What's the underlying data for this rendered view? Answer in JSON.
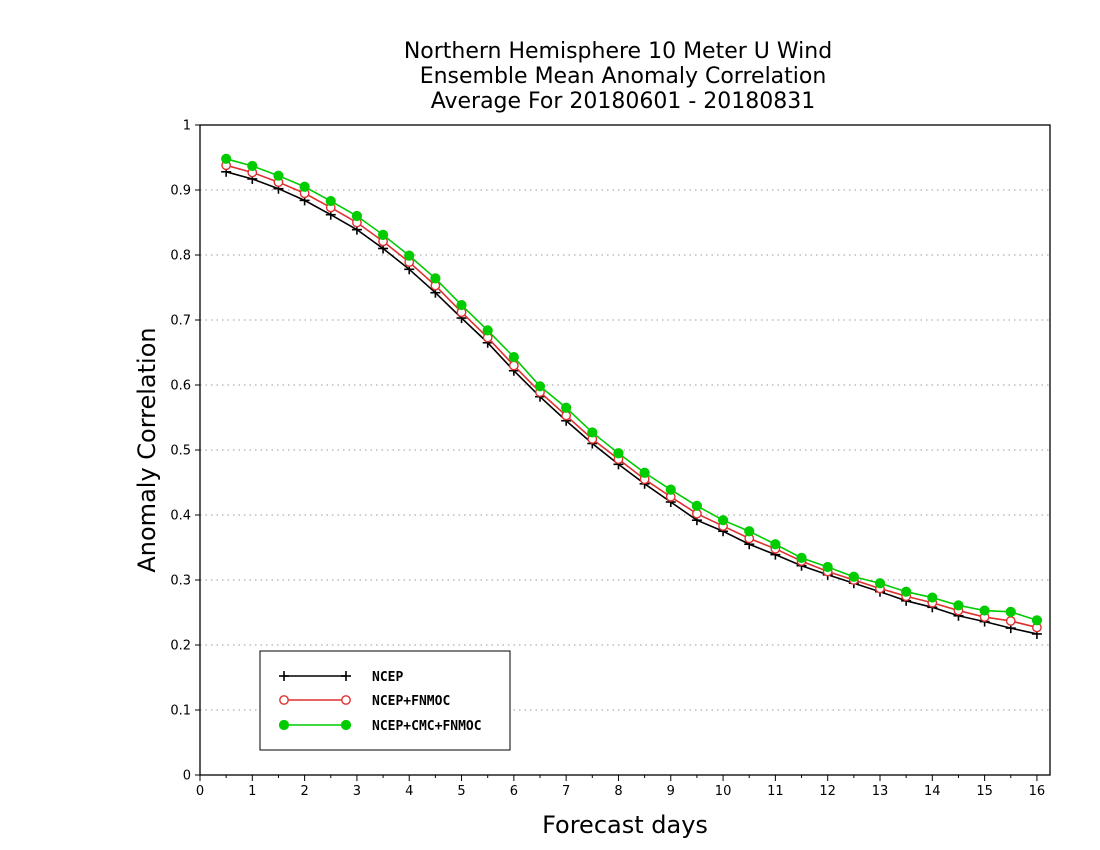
{
  "chart_data": {
    "type": "line",
    "title": [
      "Northern Hemisphere 10 Meter U Wind",
      "Ensemble Mean Anomaly Correlation",
      "Average For 20180601 - 20180831"
    ],
    "xlabel": "Forecast days",
    "ylabel": "Anomaly Correlation",
    "xlim": [
      0,
      16.25
    ],
    "ylim": [
      0,
      1
    ],
    "xticks": [
      "0",
      "1",
      "2",
      "3",
      "4",
      "5",
      "6",
      "7",
      "8",
      "9",
      "10",
      "11",
      "12",
      "13",
      "14",
      "15",
      "16"
    ],
    "yticks": [
      "0",
      "0.1",
      "0.2",
      "0.3",
      "0.4",
      "0.5",
      "0.6",
      "0.7",
      "0.8",
      "0.9",
      "1"
    ],
    "grid": "horizontal dotted",
    "legend_position": "bottom-left",
    "x": [
      0.5,
      1,
      1.5,
      2,
      2.5,
      3,
      3.5,
      4,
      4.5,
      5,
      5.5,
      6,
      6.5,
      7,
      7.5,
      8,
      8.5,
      9,
      9.5,
      10,
      10.5,
      11,
      11.5,
      12,
      12.5,
      13,
      13.5,
      14,
      14.5,
      15,
      15.5,
      16
    ],
    "series": [
      {
        "name": "NCEP",
        "color": "#000000",
        "marker": "plus",
        "values": [
          0.928,
          0.917,
          0.902,
          0.884,
          0.862,
          0.839,
          0.81,
          0.778,
          0.742,
          0.703,
          0.665,
          0.622,
          0.582,
          0.545,
          0.51,
          0.478,
          0.448,
          0.42,
          0.392,
          0.375,
          0.355,
          0.339,
          0.322,
          0.308,
          0.295,
          0.282,
          0.268,
          0.258,
          0.245,
          0.236,
          0.226,
          0.217
        ]
      },
      {
        "name": "NCEP+FNMOC",
        "color": "#e03030",
        "marker": "open-circle",
        "values": [
          0.938,
          0.927,
          0.912,
          0.895,
          0.873,
          0.85,
          0.821,
          0.789,
          0.753,
          0.712,
          0.673,
          0.63,
          0.589,
          0.553,
          0.517,
          0.486,
          0.455,
          0.428,
          0.402,
          0.383,
          0.364,
          0.348,
          0.329,
          0.313,
          0.3,
          0.287,
          0.275,
          0.265,
          0.253,
          0.243,
          0.237,
          0.227
        ]
      },
      {
        "name": "NCEP+CMC+FNMOC",
        "color": "#00cc00",
        "marker": "filled-circle",
        "values": [
          0.948,
          0.937,
          0.922,
          0.905,
          0.883,
          0.86,
          0.831,
          0.799,
          0.764,
          0.723,
          0.684,
          0.643,
          0.598,
          0.565,
          0.527,
          0.495,
          0.465,
          0.439,
          0.414,
          0.392,
          0.375,
          0.355,
          0.334,
          0.32,
          0.305,
          0.295,
          0.282,
          0.273,
          0.261,
          0.253,
          0.251,
          0.238
        ]
      }
    ]
  }
}
